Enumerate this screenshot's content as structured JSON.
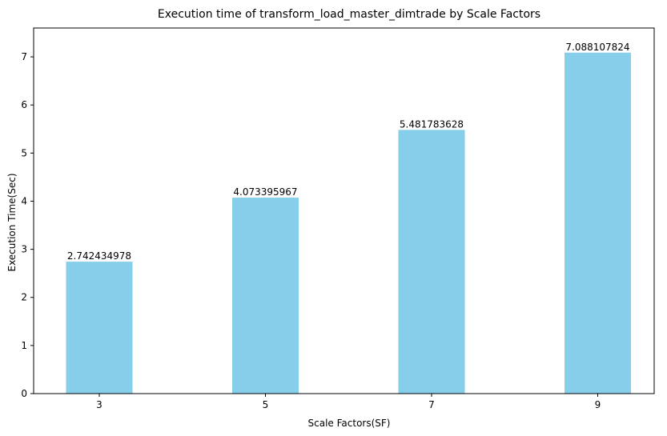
{
  "chart_data": {
    "type": "bar",
    "title": "Execution time of transform_load_master_dimtrade by Scale Factors",
    "xlabel": "Scale Factors(SF)",
    "ylabel": "Execution Time(Sec)",
    "categories": [
      "3",
      "5",
      "7",
      "9"
    ],
    "values": [
      2.742434978,
      4.073395967,
      5.481783628,
      7.088107824
    ],
    "data_labels": [
      "2.742434978",
      "4.073395967",
      "5.481783628",
      "7.088107824"
    ],
    "ylim": [
      0,
      7.6
    ],
    "yticks": [
      0,
      1,
      2,
      3,
      4,
      5,
      6,
      7
    ],
    "grid": false,
    "legend": "none",
    "bar_color": "#87CEEB",
    "axis_color": "#000000"
  }
}
